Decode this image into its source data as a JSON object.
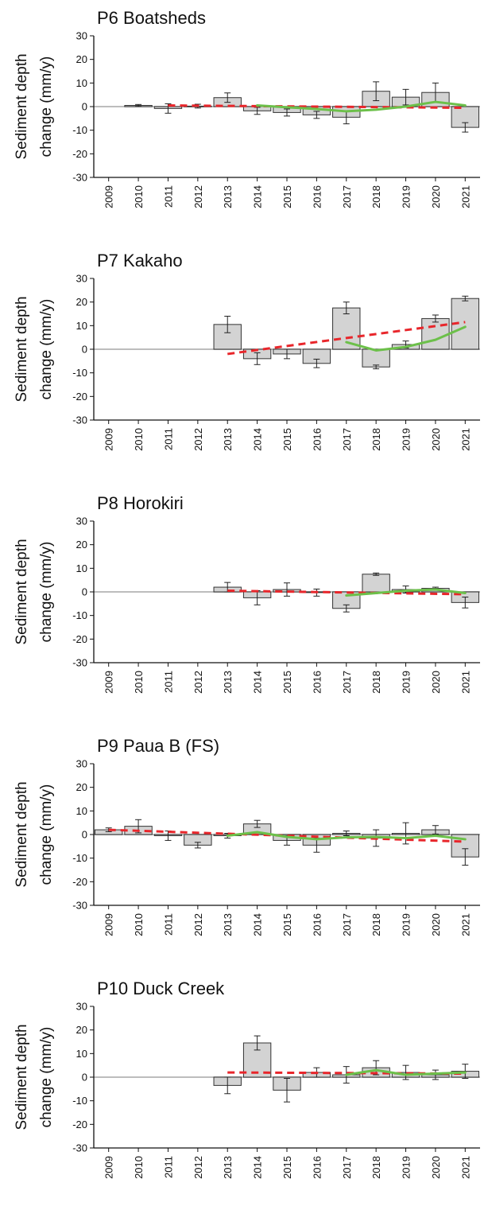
{
  "chart_data": [
    {
      "type": "bar",
      "title": "P6 Boatsheds",
      "ylabel": [
        "Sediment depth",
        "change (mm/y)"
      ],
      "ylim": [
        -30,
        30
      ],
      "yticks": [
        30,
        20,
        10,
        0,
        -10,
        -20,
        -30
      ],
      "categories": [
        "2009",
        "2010",
        "2011",
        "2012",
        "2013",
        "2014",
        "2015",
        "2016",
        "2017",
        "2018",
        "2019",
        "2020",
        "2021"
      ],
      "values": [
        null,
        0.5,
        -0.8,
        0.2,
        3.8,
        -1.8,
        -2.5,
        -3.5,
        -4.5,
        6.5,
        4.0,
        6.0,
        -8.8
      ],
      "errors": [
        null,
        0.4,
        2.0,
        0.8,
        2.0,
        1.5,
        1.5,
        1.5,
        2.8,
        4.0,
        3.3,
        4.0,
        2.0
      ],
      "trend_dashed": {
        "x": [
          "2011",
          "2021"
        ],
        "y": [
          0.5,
          -0.5
        ]
      },
      "trend_smooth": {
        "x": [
          "2014",
          "2015",
          "2016",
          "2017",
          "2018",
          "2019",
          "2020",
          "2021"
        ],
        "y": [
          0.5,
          -0.3,
          -1.0,
          -2.0,
          -1.3,
          0.0,
          2.0,
          0.5
        ]
      },
      "colors": {
        "bar": "#d3d3d3",
        "dashed": "#e8262b",
        "smooth": "#6cc04a"
      },
      "grid": false
    },
    {
      "type": "bar",
      "title": "P7 Kakaho",
      "ylabel": [
        "Sediment depth",
        "change (mm/y)"
      ],
      "ylim": [
        -30,
        30
      ],
      "yticks": [
        30,
        20,
        10,
        0,
        -10,
        -20,
        -30
      ],
      "categories": [
        "2009",
        "2010",
        "2011",
        "2012",
        "2013",
        "2014",
        "2015",
        "2016",
        "2017",
        "2018",
        "2019",
        "2020",
        "2021"
      ],
      "values": [
        null,
        null,
        null,
        null,
        10.5,
        -4.0,
        -2.0,
        -6.0,
        17.5,
        -7.5,
        2.0,
        13.0,
        21.5
      ],
      "errors": [
        null,
        null,
        null,
        null,
        3.5,
        2.5,
        2.0,
        1.8,
        2.5,
        0.8,
        1.5,
        1.5,
        1.0
      ],
      "trend_dashed": {
        "x": [
          "2013",
          "2021"
        ],
        "y": [
          -2.0,
          11.5
        ]
      },
      "trend_smooth": {
        "x": [
          "2017",
          "2018",
          "2019",
          "2020",
          "2021"
        ],
        "y": [
          3.0,
          -0.5,
          1.0,
          4.0,
          9.5
        ]
      },
      "colors": {
        "bar": "#d3d3d3",
        "dashed": "#e8262b",
        "smooth": "#6cc04a"
      },
      "grid": false
    },
    {
      "type": "bar",
      "title": "P8 Horokiri",
      "ylabel": [
        "Sediment depth",
        "change (mm/y)"
      ],
      "ylim": [
        -30,
        30
      ],
      "yticks": [
        30,
        20,
        10,
        0,
        -10,
        -20,
        -30
      ],
      "categories": [
        "2009",
        "2010",
        "2011",
        "2012",
        "2013",
        "2014",
        "2015",
        "2016",
        "2017",
        "2018",
        "2019",
        "2020",
        "2021"
      ],
      "values": [
        null,
        null,
        null,
        null,
        2.0,
        -2.5,
        1.0,
        -0.3,
        -7.0,
        7.5,
        1.0,
        1.5,
        -4.5
      ],
      "errors": [
        null,
        null,
        null,
        null,
        2.0,
        3.0,
        2.8,
        1.5,
        1.5,
        0.5,
        1.5,
        0.5,
        2.3
      ],
      "trend_dashed": {
        "x": [
          "2013",
          "2021"
        ],
        "y": [
          0.5,
          -1.0
        ]
      },
      "trend_smooth": {
        "x": [
          "2017",
          "2018",
          "2019",
          "2020",
          "2021"
        ],
        "y": [
          -1.5,
          -0.5,
          0.5,
          1.0,
          -0.5
        ]
      },
      "colors": {
        "bar": "#d3d3d3",
        "dashed": "#e8262b",
        "smooth": "#6cc04a"
      },
      "grid": false
    },
    {
      "type": "bar",
      "title": "P9 Paua B (FS)",
      "ylabel": [
        "Sediment depth",
        "change (mm/y)"
      ],
      "ylim": [
        -30,
        30
      ],
      "yticks": [
        30,
        20,
        10,
        0,
        -10,
        -20,
        -30
      ],
      "categories": [
        "2009",
        "2010",
        "2011",
        "2012",
        "2013",
        "2014",
        "2015",
        "2016",
        "2017",
        "2018",
        "2019",
        "2020",
        "2021"
      ],
      "values": [
        2.0,
        3.5,
        -0.5,
        -4.5,
        -0.5,
        4.5,
        -2.5,
        -4.5,
        0.5,
        -1.5,
        0.5,
        2.0,
        -9.5
      ],
      "errors": [
        0.8,
        2.8,
        2.0,
        1.2,
        1.0,
        1.5,
        2.0,
        3.0,
        1.0,
        3.5,
        4.5,
        1.8,
        3.5
      ],
      "trend_dashed": {
        "x": [
          "2009",
          "2021"
        ],
        "y": [
          2.0,
          -3.0
        ]
      },
      "trend_smooth": {
        "x": [
          "2013",
          "2014",
          "2015",
          "2016",
          "2017",
          "2018",
          "2019",
          "2020",
          "2021"
        ],
        "y": [
          -0.5,
          1.0,
          -1.0,
          -2.0,
          -1.2,
          -1.0,
          -1.5,
          -0.5,
          -2.0
        ]
      },
      "colors": {
        "bar": "#d3d3d3",
        "dashed": "#e8262b",
        "smooth": "#6cc04a"
      },
      "grid": false
    },
    {
      "type": "bar",
      "title": "P10 Duck Creek",
      "ylabel": [
        "Sediment depth",
        "change (mm/y)"
      ],
      "ylim": [
        -30,
        30
      ],
      "yticks": [
        30,
        20,
        10,
        0,
        -10,
        -20,
        -30
      ],
      "categories": [
        "2009",
        "2010",
        "2011",
        "2012",
        "2013",
        "2014",
        "2015",
        "2016",
        "2017",
        "2018",
        "2019",
        "2020",
        "2021"
      ],
      "values": [
        null,
        null,
        null,
        null,
        -3.5,
        14.5,
        -5.5,
        2.0,
        1.0,
        4.0,
        2.0,
        1.0,
        2.5
      ],
      "errors": [
        null,
        null,
        null,
        null,
        3.5,
        3.0,
        5.0,
        2.0,
        3.5,
        3.0,
        3.0,
        2.0,
        3.0
      ],
      "trend_dashed": {
        "x": [
          "2013",
          "2021"
        ],
        "y": [
          2.0,
          1.5
        ]
      },
      "trend_smooth": {
        "x": [
          "2017",
          "2018",
          "2019",
          "2020",
          "2021"
        ],
        "y": [
          1.0,
          3.0,
          1.0,
          1.5,
          2.0
        ]
      },
      "colors": {
        "bar": "#d3d3d3",
        "dashed": "#e8262b",
        "smooth": "#6cc04a"
      },
      "grid": false
    }
  ]
}
